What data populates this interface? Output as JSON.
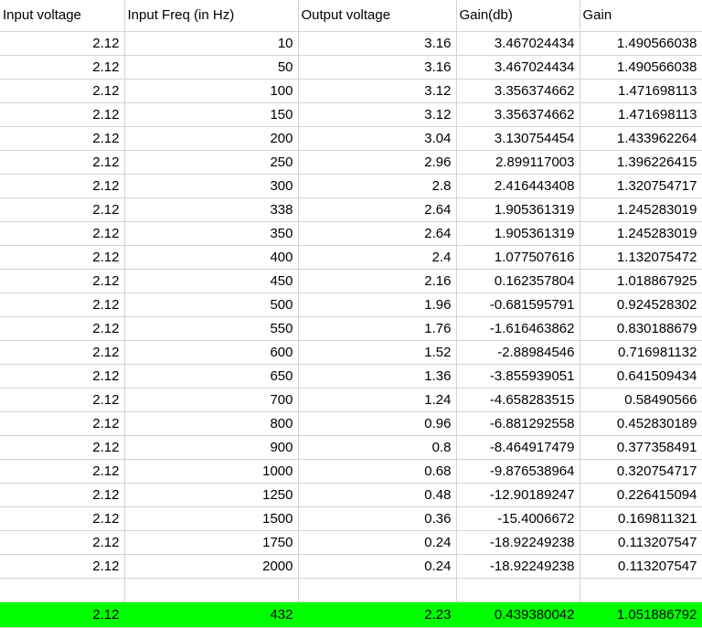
{
  "spreadsheet": {
    "headers": [
      "Input voltage",
      "Input Freq (in Hz)",
      "Output voltage",
      "Gain(db)",
      "Gain"
    ],
    "rows": [
      [
        "2.12",
        "10",
        "3.16",
        "3.467024434",
        "1.490566038"
      ],
      [
        "2.12",
        "50",
        "3.16",
        "3.467024434",
        "1.490566038"
      ],
      [
        "2.12",
        "100",
        "3.12",
        "3.356374662",
        "1.471698113"
      ],
      [
        "2.12",
        "150",
        "3.12",
        "3.356374662",
        "1.471698113"
      ],
      [
        "2.12",
        "200",
        "3.04",
        "3.130754454",
        "1.433962264"
      ],
      [
        "2.12",
        "250",
        "2.96",
        "2.899117003",
        "1.396226415"
      ],
      [
        "2.12",
        "300",
        "2.8",
        "2.416443408",
        "1.320754717"
      ],
      [
        "2.12",
        "338",
        "2.64",
        "1.905361319",
        "1.245283019"
      ],
      [
        "2.12",
        "350",
        "2.64",
        "1.905361319",
        "1.245283019"
      ],
      [
        "2.12",
        "400",
        "2.4",
        "1.077507616",
        "1.132075472"
      ],
      [
        "2.12",
        "450",
        "2.16",
        "0.162357804",
        "1.018867925"
      ],
      [
        "2.12",
        "500",
        "1.96",
        "-0.681595791",
        "0.924528302"
      ],
      [
        "2.12",
        "550",
        "1.76",
        "-1.616463862",
        "0.830188679"
      ],
      [
        "2.12",
        "600",
        "1.52",
        "-2.88984546",
        "0.716981132"
      ],
      [
        "2.12",
        "650",
        "1.36",
        "-3.855939051",
        "0.641509434"
      ],
      [
        "2.12",
        "700",
        "1.24",
        "-4.658283515",
        "0.58490566"
      ],
      [
        "2.12",
        "800",
        "0.96",
        "-6.881292558",
        "0.452830189"
      ],
      [
        "2.12",
        "900",
        "0.8",
        "-8.464917479",
        "0.377358491"
      ],
      [
        "2.12",
        "1000",
        "0.68",
        "-9.876538964",
        "0.320754717"
      ],
      [
        "2.12",
        "1250",
        "0.48",
        "-12.90189247",
        "0.226415094"
      ],
      [
        "2.12",
        "1500",
        "0.36",
        "-15.4006672",
        "0.169811321"
      ],
      [
        "2.12",
        "1750",
        "0.24",
        "-18.92249238",
        "0.113207547"
      ],
      [
        "2.12",
        "2000",
        "0.24",
        "-18.92249238",
        "0.113207547"
      ]
    ],
    "highlighted_row": [
      "2.12",
      "432",
      "2.23",
      "0.439380042",
      "1.051886792"
    ],
    "highlight_color": "#00ff00",
    "gridline_color": "#d4d4d4"
  }
}
